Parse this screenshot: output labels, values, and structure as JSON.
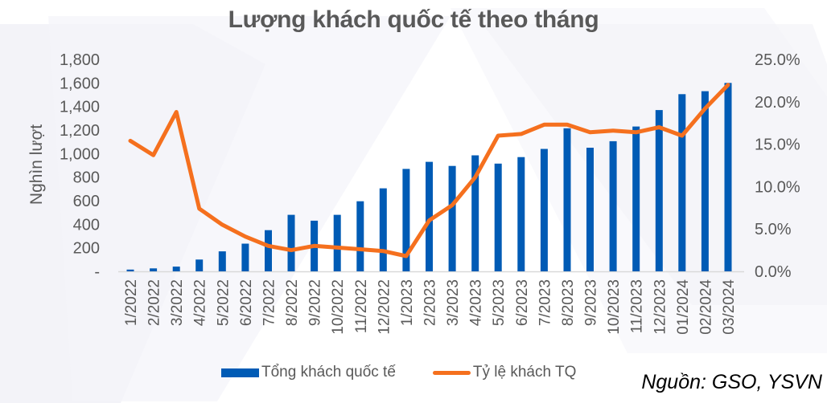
{
  "title": "Lượng khách quốc tế theo tháng",
  "source": "Nguồn: GSO, YSVN",
  "legend": {
    "bar_label": "Tổng khách quốc tế",
    "line_label": "Tỷ lệ khách TQ"
  },
  "colors": {
    "bar": "#005BB5",
    "line": "#F5701E",
    "text": "#595959",
    "axis": "#D9D9D9"
  },
  "chart_data": {
    "type": "bar+line",
    "title": "Lượng khách quốc tế theo tháng",
    "xlabel": "",
    "ylabel": "Nghìn lượt",
    "y2label": "",
    "ylim": [
      0,
      1800
    ],
    "y2lim": [
      0,
      25
    ],
    "yticks": [
      "-",
      "200",
      "400",
      "600",
      "800",
      "1,000",
      "1,200",
      "1,400",
      "1,600",
      "1,800"
    ],
    "y2ticks": [
      "0.0%",
      "5.0%",
      "10.0%",
      "15.0%",
      "20.0%",
      "25.0%"
    ],
    "grid": false,
    "legend_position": "bottom",
    "categories": [
      "1/2022",
      "2/2022",
      "3/2022",
      "4/2022",
      "5/2022",
      "6/2022",
      "7/2022",
      "8/2022",
      "9/2022",
      "10/2022",
      "11/2022",
      "12/2022",
      "1/2023",
      "2/2023",
      "3/2023",
      "4/2023",
      "5/2023",
      "6/2023",
      "7/2023",
      "8/2023",
      "9/2023",
      "10/2023",
      "11/2023",
      "12/2023",
      "01/2024",
      "02/2024",
      "03/2024"
    ],
    "series": [
      {
        "name": "Tổng khách quốc tế",
        "type": "bar",
        "axis": "left",
        "values": [
          15,
          25,
          40,
          100,
          170,
          235,
          350,
          480,
          430,
          480,
          595,
          705,
          870,
          930,
          895,
          985,
          915,
          970,
          1040,
          1215,
          1050,
          1105,
          1230,
          1370,
          1505,
          1530,
          1600
        ]
      },
      {
        "name": "Tỷ lệ khách TQ",
        "type": "line",
        "axis": "right",
        "unit": "%",
        "values": [
          15.4,
          13.7,
          18.8,
          7.4,
          5.5,
          4.1,
          3.0,
          2.5,
          3.0,
          2.8,
          2.6,
          2.4,
          1.8,
          6.0,
          7.8,
          11.1,
          16.0,
          16.2,
          17.3,
          17.3,
          16.4,
          16.6,
          16.4,
          17.0,
          16.0,
          19.2,
          22.0
        ]
      }
    ]
  }
}
